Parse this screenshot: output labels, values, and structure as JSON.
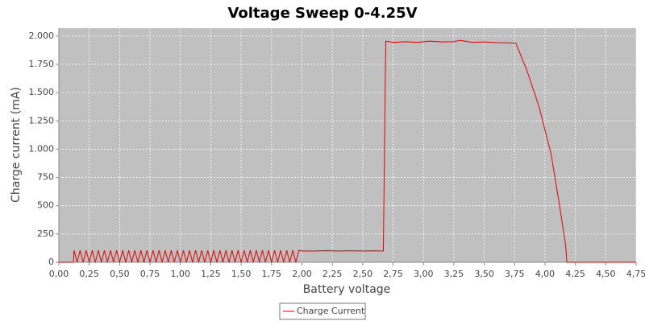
{
  "chart_data": {
    "type": "line",
    "title": "Voltage Sweep 0-4.25V",
    "x_label": "Battery voltage",
    "y_label": "Charge current (mA)",
    "xlim": [
      0,
      4.75
    ],
    "ylim": [
      0,
      2070
    ],
    "grid": true,
    "legend": "bottom",
    "xticks": [
      {
        "value": 0,
        "label": "0,00"
      },
      {
        "value": 0.25,
        "label": "0,25"
      },
      {
        "value": 0.5,
        "label": "0,50"
      },
      {
        "value": 0.75,
        "label": "0,75"
      },
      {
        "value": 1,
        "label": "1,00"
      },
      {
        "value": 1.25,
        "label": "1,25"
      },
      {
        "value": 1.5,
        "label": "1,50"
      },
      {
        "value": 1.75,
        "label": "1,75"
      },
      {
        "value": 2,
        "label": "2,00"
      },
      {
        "value": 2.25,
        "label": "2,25"
      },
      {
        "value": 2.5,
        "label": "2,50"
      },
      {
        "value": 2.75,
        "label": "2,75"
      },
      {
        "value": 3,
        "label": "3,00"
      },
      {
        "value": 3.25,
        "label": "3,25"
      },
      {
        "value": 3.5,
        "label": "3,50"
      },
      {
        "value": 3.75,
        "label": "3,75"
      },
      {
        "value": 4,
        "label": "4,00"
      },
      {
        "value": 4.25,
        "label": "4,25"
      },
      {
        "value": 4.5,
        "label": "4,50"
      },
      {
        "value": 4.75,
        "label": "4,75"
      }
    ],
    "yticks": [
      0,
      250,
      500,
      750,
      {
        "value": 1000,
        "label": "1.000"
      },
      {
        "value": 1250,
        "label": "1.250"
      },
      {
        "value": 1500,
        "label": "1.500"
      },
      {
        "value": 1750,
        "label": "1.750"
      },
      {
        "value": 2000,
        "label": "2.000"
      }
    ],
    "x": [
      0,
      0.12,
      0.125,
      0.15,
      0.175,
      0.2,
      0.225,
      0.25,
      0.275,
      0.3,
      0.325,
      0.35,
      0.375,
      0.4,
      0.425,
      0.45,
      0.475,
      0.5,
      0.525,
      0.55,
      0.575,
      0.6,
      0.625,
      0.65,
      0.675,
      0.7,
      0.725,
      0.75,
      0.775,
      0.8,
      0.825,
      0.85,
      0.875,
      0.9,
      0.925,
      0.95,
      0.975,
      1.0,
      1.025,
      1.05,
      1.075,
      1.1,
      1.125,
      1.15,
      1.175,
      1.2,
      1.225,
      1.25,
      1.275,
      1.3,
      1.325,
      1.35,
      1.375,
      1.4,
      1.425,
      1.45,
      1.475,
      1.5,
      1.525,
      1.55,
      1.575,
      1.6,
      1.625,
      1.65,
      1.675,
      1.7,
      1.725,
      1.75,
      1.775,
      1.8,
      1.825,
      1.85,
      1.875,
      1.9,
      1.925,
      1.95,
      1.975,
      2.0,
      2.1,
      2.2,
      2.3,
      2.4,
      2.5,
      2.6,
      2.67,
      2.69,
      2.75,
      2.85,
      2.95,
      3.05,
      3.15,
      3.25,
      3.3,
      3.4,
      3.5,
      3.6,
      3.7,
      3.76,
      3.85,
      3.95,
      4.05,
      4.12,
      4.17,
      4.18,
      4.75
    ],
    "series": [
      {
        "name": "Charge Current",
        "color": "#e00000",
        "values": [
          0,
          0,
          105,
          0,
          105,
          0,
          105,
          0,
          105,
          0,
          105,
          0,
          105,
          0,
          105,
          0,
          105,
          0,
          105,
          0,
          105,
          0,
          105,
          0,
          105,
          0,
          105,
          0,
          105,
          0,
          105,
          0,
          105,
          0,
          105,
          0,
          105,
          0,
          105,
          0,
          105,
          0,
          105,
          0,
          105,
          0,
          105,
          0,
          105,
          0,
          105,
          0,
          105,
          0,
          105,
          0,
          105,
          0,
          105,
          0,
          105,
          0,
          105,
          0,
          105,
          0,
          105,
          0,
          105,
          0,
          105,
          0,
          105,
          0,
          105,
          0,
          105,
          100,
          100,
          102,
          100,
          101,
          100,
          101,
          100,
          1955,
          1945,
          1950,
          1945,
          1955,
          1948,
          1950,
          1962,
          1945,
          1948,
          1942,
          1940,
          1938,
          1700,
          1380,
          960,
          500,
          150,
          0,
          0
        ]
      }
    ]
  }
}
